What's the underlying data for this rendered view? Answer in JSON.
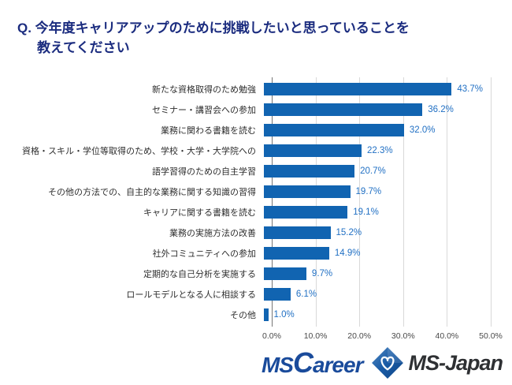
{
  "title": {
    "line1": "Q. 今年度キャリアアップのために挑戦したいと思っていることを",
    "line2": "教えてください"
  },
  "chart_data": {
    "type": "bar",
    "orientation": "horizontal",
    "title": "今年度キャリアアップのために挑戦したいと思っていること",
    "categories": [
      "新たな資格取得のため勉強",
      "セミナー・講習会への参加",
      "業務に関わる書籍を読む",
      "資格・スキル・学位等取得のため、学校・大学・大学院への",
      "語学習得のための自主学習",
      "その他の方法での、自主的な業務に関する知識の習得",
      "キャリアに関する書籍を読む",
      "業務の実施方法の改善",
      "社外コミュニティへの参加",
      "定期的な自己分析を実施する",
      "ロールモデルとなる人に相談する",
      "その他"
    ],
    "values": [
      43.7,
      36.2,
      32.0,
      22.3,
      20.7,
      19.7,
      19.1,
      15.2,
      14.9,
      9.7,
      6.1,
      1.0
    ],
    "value_labels": [
      "43.7%",
      "36.2%",
      "32.0%",
      "22.3%",
      "20.7%",
      "19.7%",
      "19.1%",
      "15.2%",
      "14.9%",
      "9.7%",
      "6.1%",
      "1.0%"
    ],
    "x_ticks": [
      "0.0%",
      "10.0%",
      "20.0%",
      "30.0%",
      "40.0%",
      "50.0%"
    ],
    "xlim": [
      0,
      50
    ],
    "grid": "vertical",
    "legend": "none",
    "bar_color": "#1164B1",
    "value_label_color": "#2170C4"
  },
  "footer": {
    "ms_career": {
      "ms": "MS",
      "c": "C",
      "areer": "areer"
    },
    "ms_japan": "MS-Japan",
    "diamond_icon": "ms-japan-diamond-logo",
    "logo_blue": "#1A4B9B",
    "logo_dark": "#2E3033"
  }
}
